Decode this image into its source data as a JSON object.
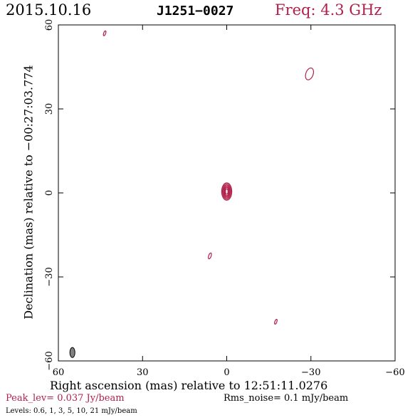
{
  "header": {
    "date": "2015.10.16",
    "source": "J1251−0027",
    "frequency": "Freq: 4.3 GHz"
  },
  "footer": {
    "peak": "Peak_lev=  0.037 Jy/beam",
    "rms": "Rms_noise=  0.1 mJy/beam",
    "levels": "Levels: 0.6,    1,    3,    5,   10,   21 mJy/beam"
  },
  "colors": {
    "contour": "#b0204a",
    "beam": "#808080"
  },
  "chart_data": {
    "type": "contour",
    "xlabel": "Right ascension (mas) relative to 12:51:11.0276",
    "ylabel": "Declination (mas) relative to −00:27:03.774",
    "xlim": [
      60,
      -60
    ],
    "ylim": [
      -60,
      60
    ],
    "xticks": [
      60,
      30,
      0,
      -30,
      -60
    ],
    "yticks": [
      60,
      30,
      0,
      -30,
      -60
    ],
    "xtick_labels": [
      "60",
      "30",
      "0",
      "−30",
      "−60"
    ],
    "ytick_labels": [
      "60",
      "30",
      "0",
      "−30",
      "−60"
    ],
    "levels_mJy": [
      0.6,
      1,
      3,
      5,
      10,
      21
    ],
    "core": {
      "ra": 0,
      "dec": 0.5,
      "rings": [
        {
          "a": 1.8,
          "b": 3.1
        },
        {
          "a": 1.5,
          "b": 2.7
        },
        {
          "a": 1.2,
          "b": 2.3
        },
        {
          "a": 0.95,
          "b": 1.9
        },
        {
          "a": 0.7,
          "b": 1.5
        },
        {
          "a": 0.45,
          "b": 1.0
        }
      ]
    },
    "blobs": [
      {
        "ra": -29.5,
        "dec": 42.5,
        "a": 1.3,
        "b": 2.2
      },
      {
        "ra": 43.5,
        "dec": 57,
        "a": 0.35,
        "b": 0.9
      },
      {
        "ra": 6,
        "dec": -22.5,
        "a": 0.45,
        "b": 1.1
      },
      {
        "ra": -17.5,
        "dec": -46,
        "a": 0.35,
        "b": 0.9
      }
    ],
    "beam": {
      "ra": 55,
      "dec": -57,
      "a": 0.9,
      "b": 1.8
    }
  }
}
